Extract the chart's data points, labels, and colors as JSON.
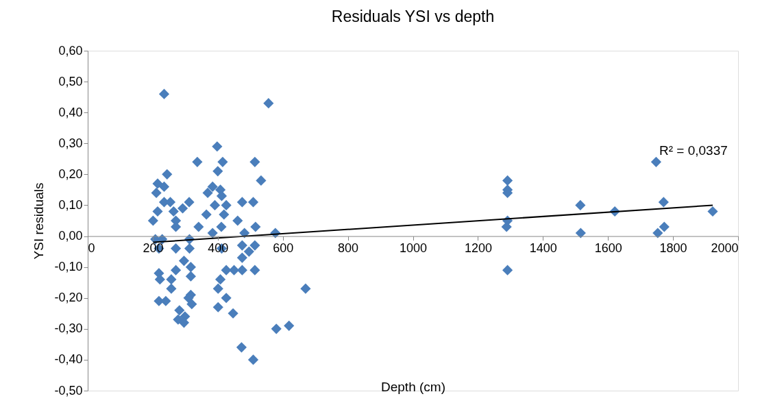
{
  "chart_data": {
    "type": "scatter",
    "title": "Residuals YSI vs depth",
    "xlabel": "Depth (cm)",
    "ylabel": "YSI residuals",
    "xlim": [
      0,
      2000
    ],
    "xticks": [
      0,
      200,
      400,
      600,
      800,
      1000,
      1200,
      1400,
      1600,
      1800,
      2000
    ],
    "ylim": [
      -0.5,
      0.6
    ],
    "yticks": [
      {
        "value": -0.5,
        "label": "-0,50"
      },
      {
        "value": -0.4,
        "label": "-0,40"
      },
      {
        "value": -0.3,
        "label": "-0,30"
      },
      {
        "value": -0.2,
        "label": "-0,20"
      },
      {
        "value": -0.1,
        "label": "-0,10"
      },
      {
        "value": 0,
        "label": "0,00"
      },
      {
        "value": 0.1,
        "label": "0,10"
      },
      {
        "value": 0.2,
        "label": "0,20"
      },
      {
        "value": 0.3,
        "label": "0,30"
      },
      {
        "value": 0.4,
        "label": "0,40"
      },
      {
        "value": 0.5,
        "label": "0,50"
      },
      {
        "value": 0.6,
        "label": "0,60"
      }
    ],
    "grid": false,
    "annotations": [
      "R² = 0,0337"
    ],
    "series": [
      {
        "marker": "diamond",
        "color": "#4a7ebb",
        "x": [
          235,
          556,
          398,
          337,
          415,
          514,
          400,
          244,
          533,
          215,
          235,
          211,
          384,
          408,
          369,
          412,
          312,
          235,
          254,
          475,
          509,
          215,
          264,
          292,
          391,
          426,
          365,
          201,
          271,
          419,
          461,
          341,
          271,
          516,
          577,
          411,
          384,
          482,
          208,
          313,
          229,
          219,
          271,
          313,
          412,
          475,
          514,
          496,
          475,
          296,
          317,
          426,
          450,
          475,
          514,
          219,
          271,
          317,
          222,
          257,
          408,
          257,
          401,
          426,
          317,
          219,
          310,
          240,
          320,
          401,
          282,
          447,
          299,
          278,
          296,
          473,
          509,
          580,
          619,
          670,
          1291,
          1291,
          1291,
          1291,
          1288,
          1291,
          1515,
          1516,
          1621,
          1748,
          1771,
          1753,
          1773,
          1922
        ],
        "values": [
          0.46,
          0.43,
          0.29,
          0.24,
          0.24,
          0.24,
          0.21,
          0.2,
          0.18,
          0.17,
          0.16,
          0.14,
          0.16,
          0.15,
          0.14,
          0.13,
          0.11,
          0.11,
          0.11,
          0.11,
          0.11,
          0.08,
          0.08,
          0.09,
          0.1,
          0.1,
          0.07,
          0.05,
          0.05,
          0.07,
          0.05,
          0.03,
          0.03,
          0.03,
          0.01,
          0.03,
          0.01,
          0.01,
          -0.01,
          -0.01,
          -0.01,
          -0.04,
          -0.04,
          -0.04,
          -0.04,
          -0.03,
          -0.03,
          -0.05,
          -0.07,
          -0.08,
          -0.1,
          -0.11,
          -0.11,
          -0.11,
          -0.11,
          -0.12,
          -0.11,
          -0.13,
          -0.14,
          -0.14,
          -0.14,
          -0.17,
          -0.17,
          -0.2,
          -0.19,
          -0.21,
          -0.2,
          -0.21,
          -0.22,
          -0.23,
          -0.24,
          -0.25,
          -0.26,
          -0.27,
          -0.28,
          -0.36,
          -0.4,
          -0.3,
          -0.29,
          -0.17,
          0.18,
          0.15,
          0.14,
          0.05,
          0.03,
          -0.11,
          0.1,
          0.01,
          0.08,
          0.24,
          0.11,
          0.01,
          0.03,
          0.08
        ]
      },
      {
        "type": "line",
        "marker": "none",
        "line_style": "solid",
        "color": "#000000",
        "x": [
          201,
          1922
        ],
        "values": [
          -0.02,
          0.1
        ]
      }
    ]
  }
}
